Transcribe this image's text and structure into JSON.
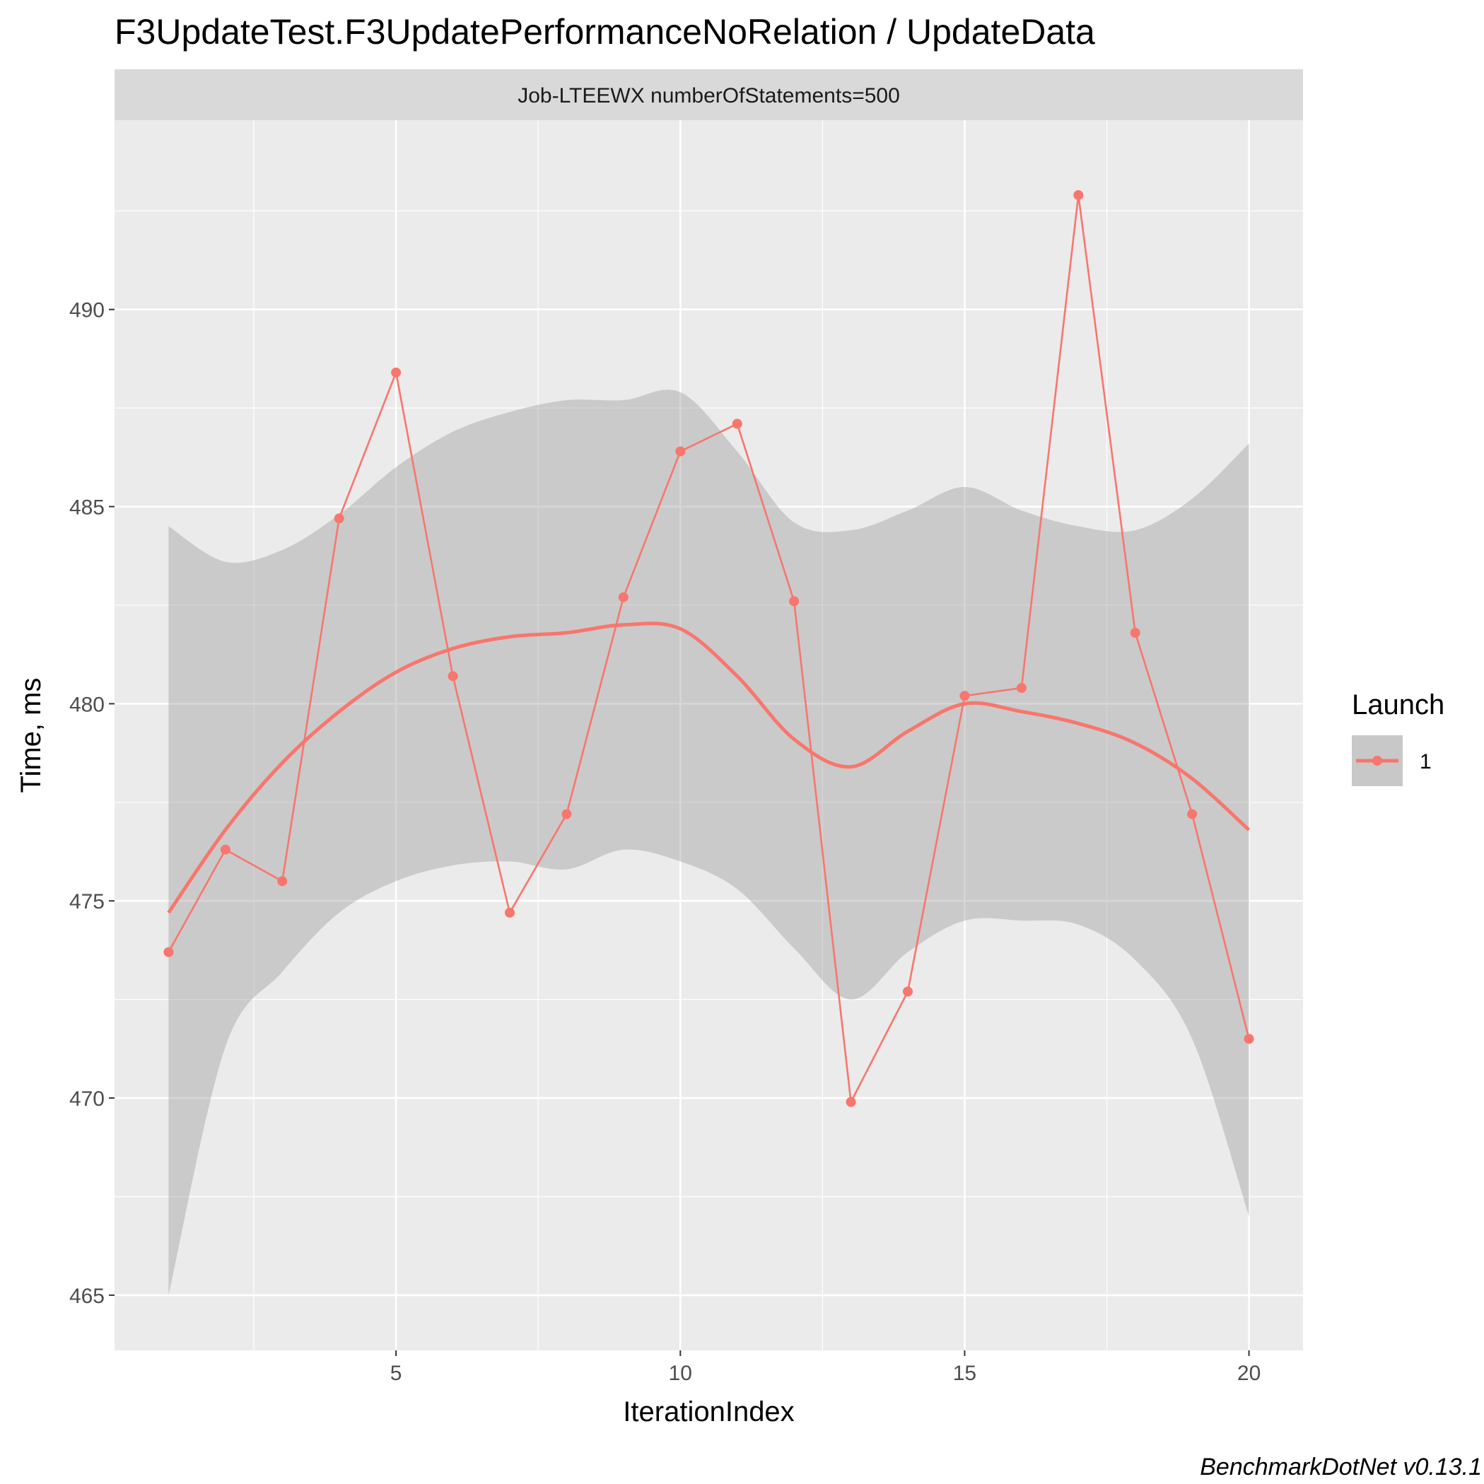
{
  "chart_data": {
    "type": "line",
    "title": "F3UpdateTest.F3UpdatePerformanceNoRelation / UpdateData",
    "facet_label": "Job-LTEEWX numberOfStatements=500",
    "xlabel": "IterationIndex",
    "ylabel": "Time, ms",
    "xlim": [
      0.05,
      20.95
    ],
    "ylim": [
      463.6,
      494.8
    ],
    "xticks": [
      5,
      10,
      15,
      20
    ],
    "yticks": [
      465,
      470,
      475,
      480,
      485,
      490
    ],
    "grid": true,
    "legend": {
      "title": "Launch",
      "position": "right",
      "entries": [
        "1"
      ]
    },
    "series": [
      {
        "name": "1",
        "x": [
          1,
          2,
          3,
          4,
          5,
          6,
          7,
          8,
          9,
          10,
          11,
          12,
          13,
          14,
          15,
          16,
          17,
          18,
          19,
          20
        ],
        "values": [
          473.7,
          476.3,
          475.5,
          484.7,
          488.4,
          480.7,
          474.7,
          477.2,
          482.7,
          486.4,
          487.1,
          482.6,
          469.9,
          472.7,
          480.2,
          480.4,
          492.9,
          481.8,
          477.2,
          471.5
        ]
      }
    ],
    "smooth": {
      "x": [
        1,
        2,
        3,
        4,
        5,
        6,
        7,
        8,
        9,
        10,
        11,
        12,
        13,
        14,
        15,
        16,
        17,
        18,
        19,
        20
      ],
      "fit": [
        474.7,
        476.8,
        478.5,
        479.8,
        480.8,
        481.4,
        481.7,
        481.8,
        482.0,
        481.9,
        480.7,
        479.1,
        478.4,
        479.3,
        480.0,
        479.8,
        479.5,
        479.0,
        478.1,
        476.8
      ],
      "lower": [
        465.0,
        471.3,
        473.2,
        474.7,
        475.5,
        475.9,
        476.0,
        475.8,
        476.3,
        476.0,
        475.3,
        473.8,
        472.5,
        473.7,
        474.5,
        474.5,
        474.4,
        473.5,
        471.5,
        467.0
      ],
      "upper": [
        484.5,
        483.6,
        483.9,
        484.8,
        486.0,
        486.9,
        487.4,
        487.7,
        487.7,
        487.9,
        486.4,
        484.6,
        484.4,
        484.9,
        485.5,
        484.9,
        484.5,
        484.4,
        485.2,
        486.6
      ]
    },
    "colors": {
      "series": "#F8766D",
      "ribbon": "#999999",
      "panel_bg": "#EBEBEB",
      "strip_bg": "#D9D9D9",
      "grid": "#FFFFFF"
    }
  },
  "caption": "BenchmarkDotNet v0.13.1"
}
